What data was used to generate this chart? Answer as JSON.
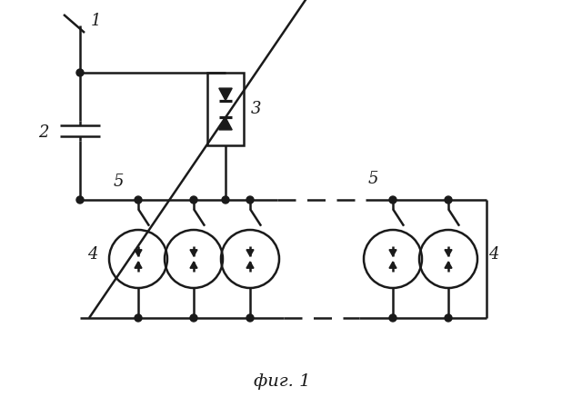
{
  "title": "фиг. 1",
  "bg_color": "#ffffff",
  "line_color": "#1a1a1a",
  "lw": 1.8,
  "fig_width": 6.4,
  "fig_height": 4.48,
  "dpi": 100
}
